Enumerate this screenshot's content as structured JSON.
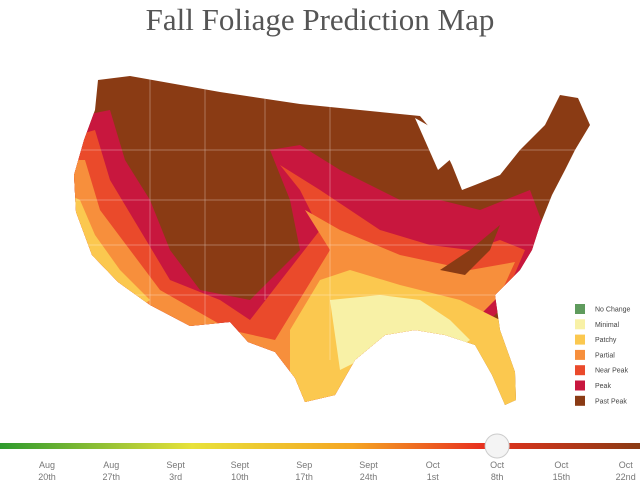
{
  "header": {
    "title": "Fall Foliage Prediction Map"
  },
  "legend": {
    "items": [
      {
        "label": "No Change",
        "color": "#5f9b5d"
      },
      {
        "label": "Minimal",
        "color": "#f8f1a6"
      },
      {
        "label": "Patchy",
        "color": "#fbc84f"
      },
      {
        "label": "Partial",
        "color": "#f78f3c"
      },
      {
        "label": "Near Peak",
        "color": "#ea4a2b"
      },
      {
        "label": "Peak",
        "color": "#c8173e"
      },
      {
        "label": "Past Peak",
        "color": "#8a3b14"
      }
    ]
  },
  "timeline": {
    "dates": [
      {
        "month": "Aug",
        "day": "20th"
      },
      {
        "month": "Aug",
        "day": "27th"
      },
      {
        "month": "Sept",
        "day": "3rd"
      },
      {
        "month": "Sept",
        "day": "10th"
      },
      {
        "month": "Sep",
        "day": "17th"
      },
      {
        "month": "Sept",
        "day": "24th"
      },
      {
        "month": "Oct",
        "day": "1st"
      },
      {
        "month": "Oct",
        "day": "8th"
      },
      {
        "month": "Oct",
        "day": "15th"
      },
      {
        "month": "Oct",
        "day": "22nd"
      }
    ],
    "selected": 7
  }
}
